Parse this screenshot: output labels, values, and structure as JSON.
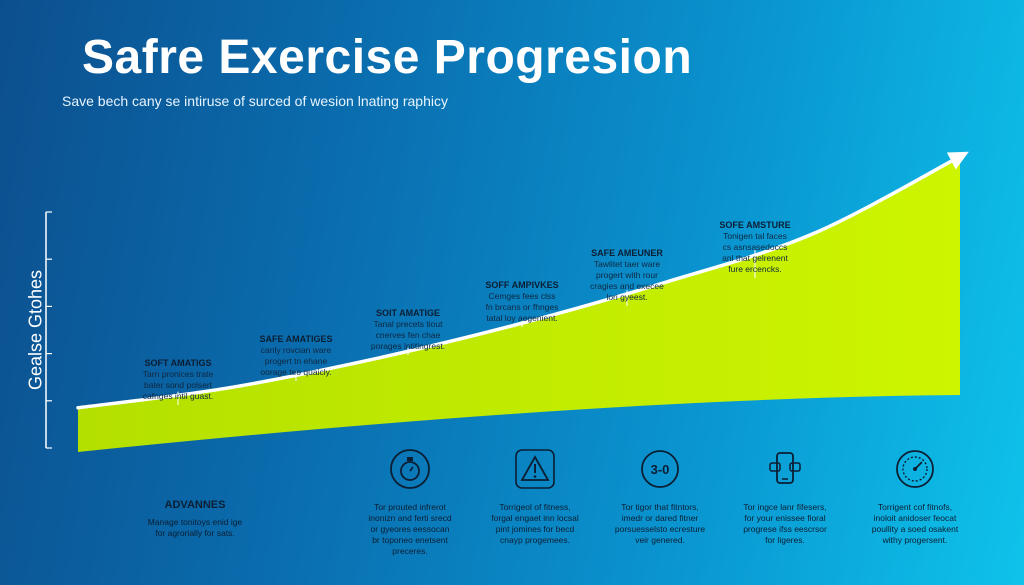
{
  "header": {
    "title": "Safre Exercise Progresion",
    "subtitle": "Save bech cany se intiruse of surced of wesion lnating raphicy"
  },
  "chart_data": {
    "type": "area",
    "title": "Safre Exercise Progresion",
    "ylabel": "Gealse Gtohes",
    "xlabel": "",
    "y_ticks": [
      "",
      "",
      "",
      "",
      "",
      ""
    ],
    "series": [
      {
        "x": [
          0,
          1,
          2,
          3,
          4,
          5,
          6
        ],
        "values": [
          1,
          1.6,
          2.5,
          3.6,
          4.9,
          6.4,
          8.8
        ]
      }
    ],
    "colors": {
      "area": "#c8f000",
      "line": "#ffffff"
    },
    "stages": [
      {
        "title": "SOFT AMATIGS",
        "lines": [
          "Tarn pronices trate",
          "bater sond polsert",
          "cafnges intil guast."
        ]
      },
      {
        "title": "SAFE AMATIGES",
        "lines": [
          "canly rovcian ware",
          "progert tn ehane",
          "oorage teo quaicly."
        ]
      },
      {
        "title": "SOIT AMATIGE",
        "lines": [
          "Tanal precets tiout",
          "cnerves fen chae",
          "porages intitingrest."
        ]
      },
      {
        "title": "SOFF AMPIVKES",
        "lines": [
          "Cemges fees clss",
          "fn brcans or fhnges",
          "tatal loy aegenient."
        ]
      },
      {
        "title": "SAFE AMEUNER",
        "lines": [
          "Tawlitet taer ware",
          "progert with rour",
          "cragies and execee",
          "lori gyeest."
        ]
      },
      {
        "title": "SOFE AMSTURE",
        "lines": [
          "Tonigen tal faces",
          "cs asnsasedoccs",
          "anl that gelrenent",
          "fure ercencks."
        ]
      }
    ]
  },
  "bottom": {
    "advance": {
      "title": "ADVANNES",
      "lines": [
        "Manage tonitoys enid ige",
        "for agrorially for sats."
      ]
    },
    "cards": [
      {
        "icon": "stopwatch-icon",
        "lines": [
          "Tor prouted infrerot",
          "inonizn and ferti srecd",
          "or gyeores eessocan",
          "br toponeo enetsent",
          "preceres."
        ]
      },
      {
        "icon": "warning-triangle-icon",
        "lines": [
          "Torrigeol of fitness,",
          "forgal engaet inn locsal",
          "pint jomines for becd",
          "cnayp progemees."
        ]
      },
      {
        "icon": "timer-30-icon",
        "badge": "3-0",
        "lines": [
          "Tor tigor that fitntors,",
          "imedr or dared fitner",
          "porsuesselsto ecresture",
          "veir genered."
        ]
      },
      {
        "icon": "phone-tracker-icon",
        "lines": [
          "Tor ingce lanr fifesers,",
          "for your enissee fioral",
          "progrese ifss eescrsor",
          "for ligeres."
        ]
      },
      {
        "icon": "gauge-dial-icon",
        "lines": [
          "Torrigent cof fitnofs,",
          "inoloit anidoser feocat",
          "poullity a soed osakent",
          "withy progersent."
        ]
      }
    ]
  }
}
